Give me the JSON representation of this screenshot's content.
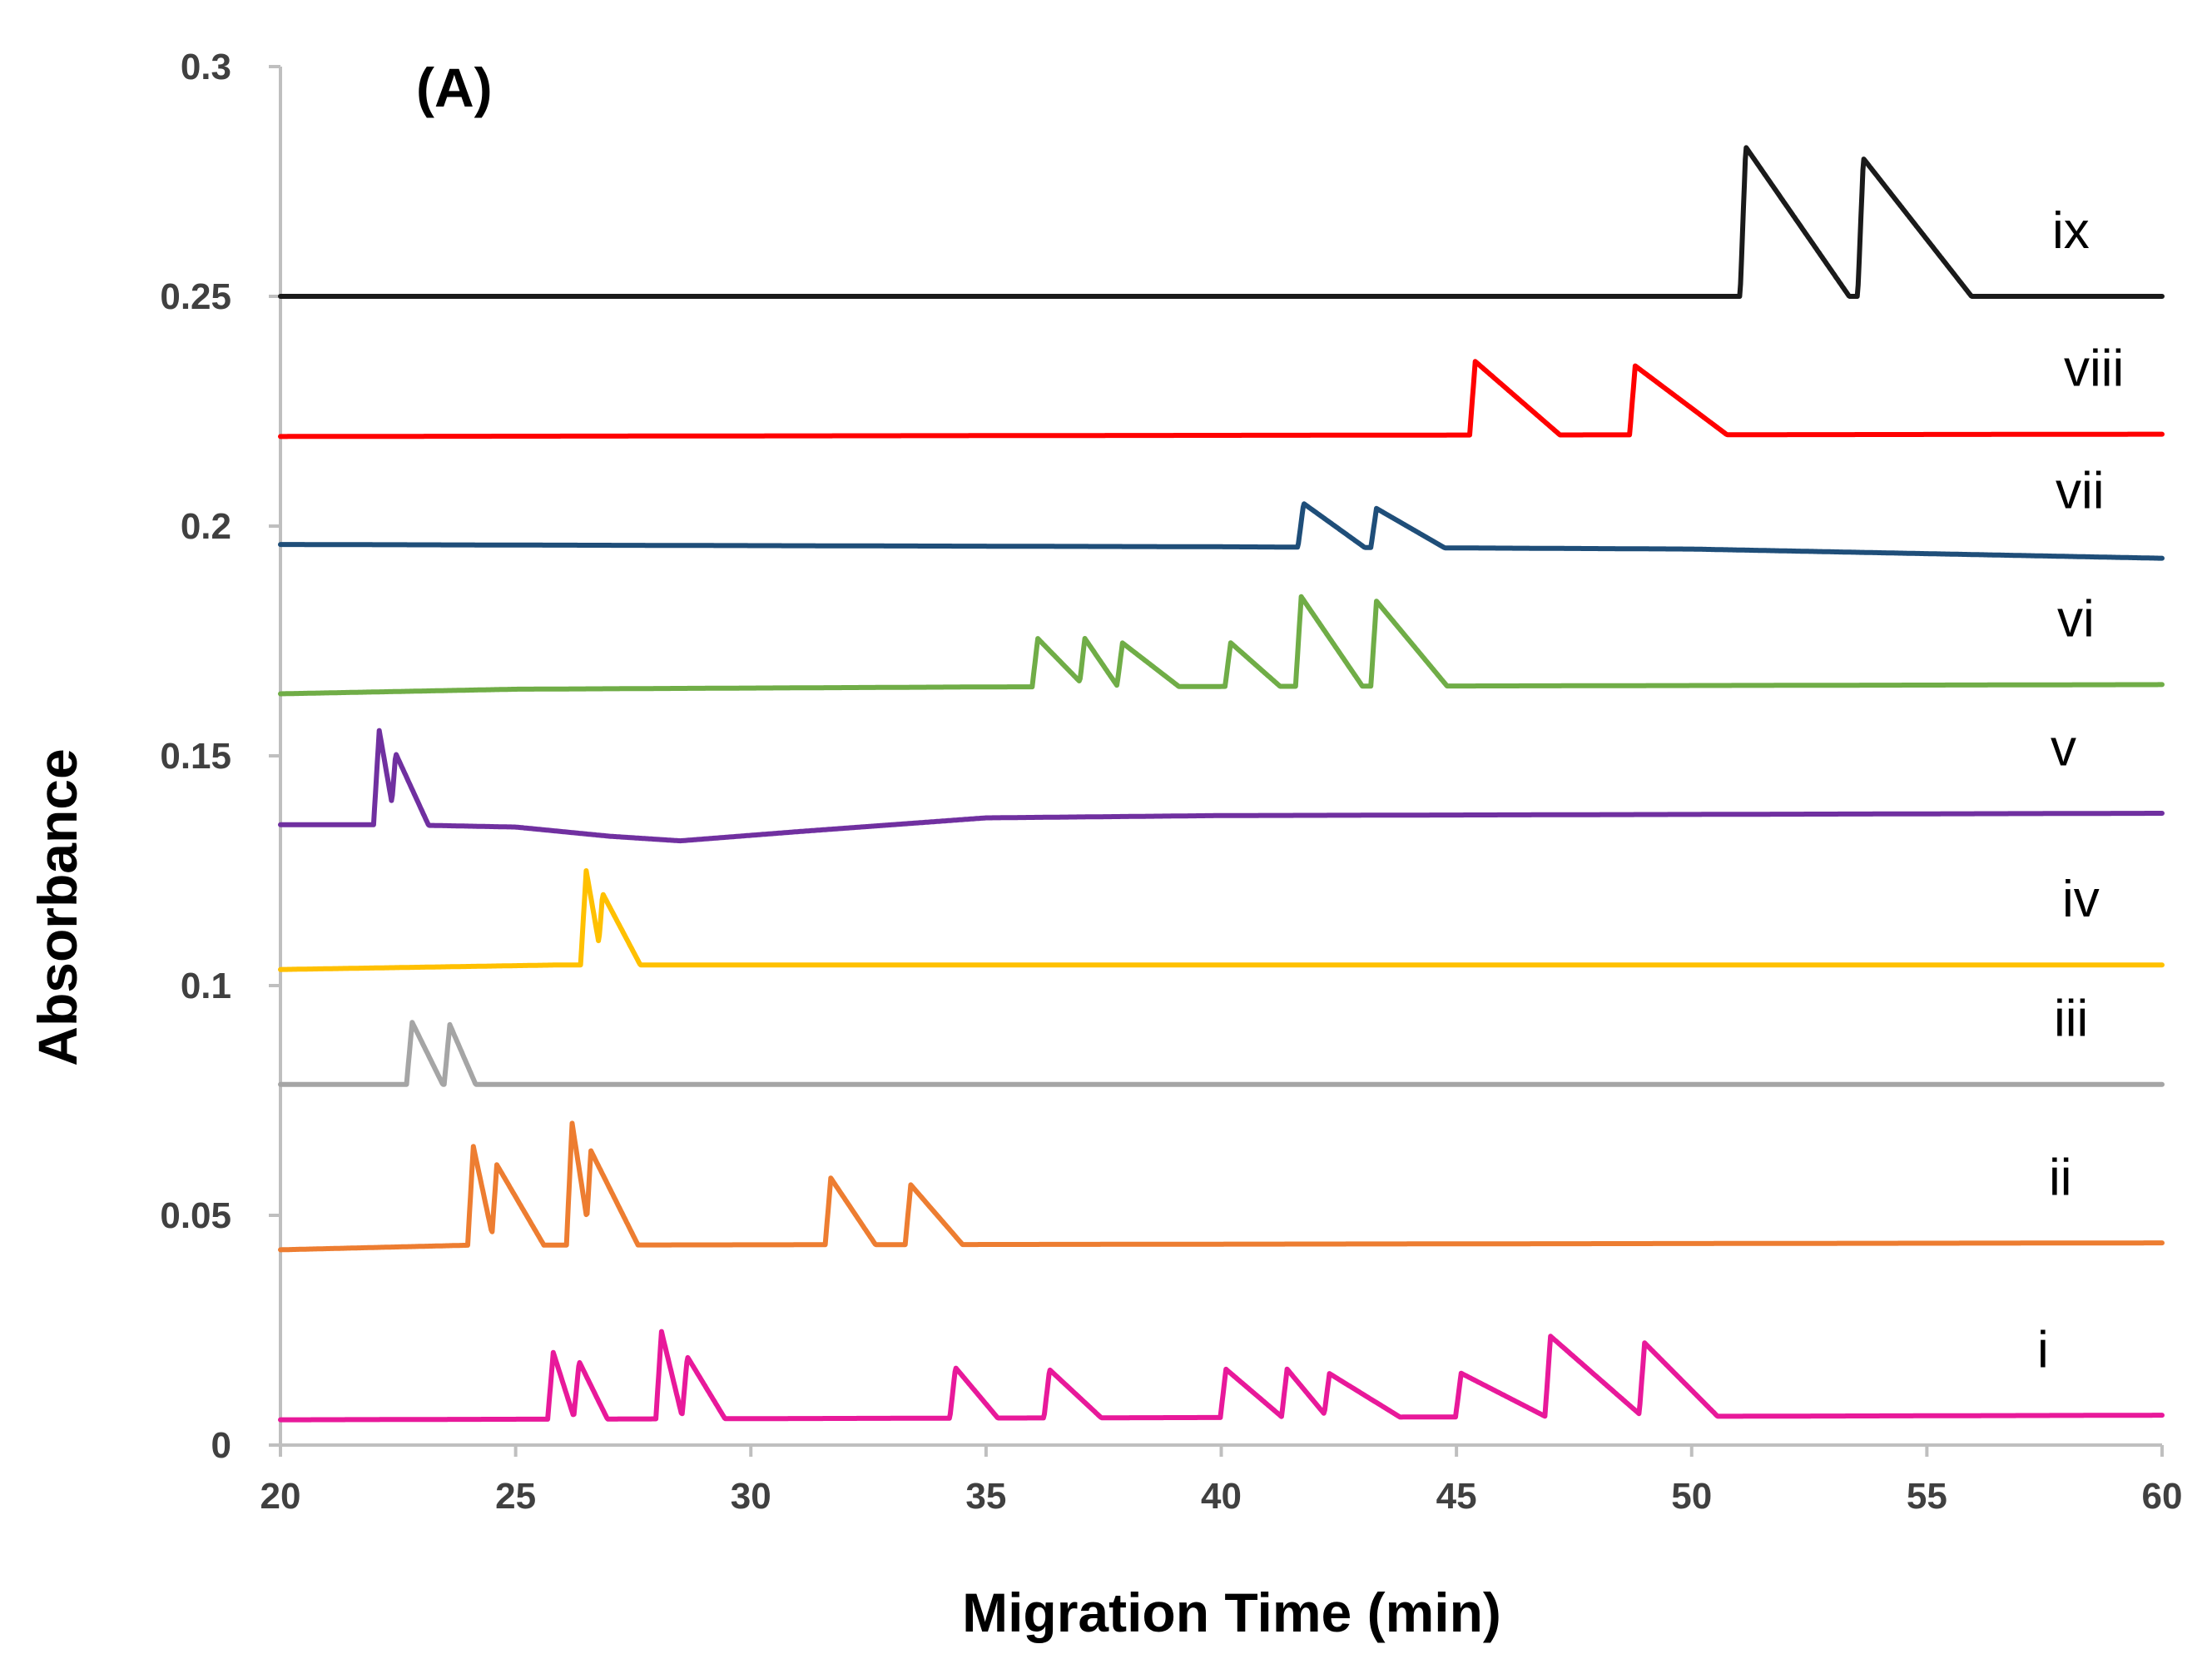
{
  "chart_data": {
    "type": "line",
    "panel_label": "(A)",
    "xlabel": "Migration Time (min)",
    "ylabel": "Absorbance",
    "xlim": [
      20,
      60
    ],
    "ylim": [
      0,
      0.3
    ],
    "xticks": [
      20,
      25,
      30,
      35,
      40,
      45,
      50,
      55,
      60
    ],
    "xtick_labels": [
      "20",
      "25",
      "30",
      "35",
      "40",
      "45",
      "50",
      "55",
      "60"
    ],
    "yticks": [
      0,
      0.05,
      0.1,
      0.15,
      0.2,
      0.25,
      0.3
    ],
    "ytick_labels": [
      "0",
      "0.05",
      "0.1",
      "0.15",
      "0.2",
      "0.25",
      "0.3"
    ],
    "grid": false,
    "series": [
      {
        "name": "i",
        "color": "#e8199a",
        "baseline": [
          [
            20,
            0.0055
          ],
          [
            60,
            0.0065
          ]
        ],
        "peaks": [
          {
            "t": 25.8,
            "h": 0.0145,
            "w": 0.45
          },
          {
            "t": 26.35,
            "h": 0.0125,
            "w": 0.6
          },
          {
            "t": 28.1,
            "h": 0.019,
            "w": 0.45
          },
          {
            "t": 28.65,
            "h": 0.0135,
            "w": 0.8
          },
          {
            "t": 34.35,
            "h": 0.011,
            "w": 0.9
          },
          {
            "t": 36.35,
            "h": 0.0105,
            "w": 1.1
          },
          {
            "t": 40.1,
            "h": 0.0105,
            "w": 1.2
          },
          {
            "t": 41.4,
            "h": 0.0105,
            "w": 0.85
          },
          {
            "t": 42.3,
            "h": 0.0095,
            "w": 1.5
          },
          {
            "t": 45.1,
            "h": 0.0095,
            "w": 1.8
          },
          {
            "t": 47.0,
            "h": 0.0175,
            "w": 1.95
          },
          {
            "t": 49.0,
            "h": 0.016,
            "w": 1.55
          }
        ]
      },
      {
        "name": "ii",
        "color": "#ed7d31",
        "baseline": [
          [
            20,
            0.0425
          ],
          [
            24,
            0.0435
          ],
          [
            60,
            0.044
          ]
        ],
        "peaks": [
          {
            "t": 24.1,
            "h": 0.0215,
            "w": 0.45
          },
          {
            "t": 24.6,
            "h": 0.0175,
            "w": 1.0
          },
          {
            "t": 26.2,
            "h": 0.0265,
            "w": 0.4
          },
          {
            "t": 26.6,
            "h": 0.0205,
            "w": 1.0
          },
          {
            "t": 31.7,
            "h": 0.0145,
            "w": 0.95
          },
          {
            "t": 33.4,
            "h": 0.013,
            "w": 1.1
          }
        ]
      },
      {
        "name": "iii",
        "color": "#a5a5a5",
        "baseline": [
          [
            20,
            0.0785
          ],
          [
            60,
            0.0785
          ]
        ],
        "peaks": [
          {
            "t": 22.8,
            "h": 0.0135,
            "w": 0.65
          },
          {
            "t": 23.6,
            "h": 0.013,
            "w": 0.55
          }
        ]
      },
      {
        "name": "iv",
        "color": "#ffc000",
        "baseline": [
          [
            20,
            0.1035
          ],
          [
            26,
            0.1045
          ],
          [
            60,
            0.1045
          ]
        ],
        "peaks": [
          {
            "t": 26.5,
            "h": 0.0205,
            "w": 0.35
          },
          {
            "t": 26.85,
            "h": 0.0155,
            "w": 0.8
          }
        ]
      },
      {
        "name": "v",
        "color": "#7030a0",
        "baseline": [
          [
            20,
            0.135
          ],
          [
            22.0,
            0.135
          ],
          [
            22.5,
            0.135
          ],
          [
            25,
            0.1345
          ],
          [
            27,
            0.1325
          ],
          [
            28.5,
            0.1315
          ],
          [
            31,
            0.1335
          ],
          [
            35,
            0.1365
          ],
          [
            40,
            0.137
          ],
          [
            60,
            0.1375
          ]
        ],
        "peaks": [
          {
            "t": 22.1,
            "h": 0.0205,
            "w": 0.35
          },
          {
            "t": 22.45,
            "h": 0.0155,
            "w": 0.7
          }
        ]
      },
      {
        "name": "vi",
        "color": "#70ad47",
        "baseline": [
          [
            20,
            0.1635
          ],
          [
            25,
            0.1645
          ],
          [
            35,
            0.165
          ],
          [
            60,
            0.1655
          ]
        ],
        "peaks": [
          {
            "t": 36.1,
            "h": 0.0105,
            "w": 1.0
          },
          {
            "t": 37.1,
            "h": 0.0105,
            "w": 0.7
          },
          {
            "t": 37.9,
            "h": 0.0095,
            "w": 1.2
          },
          {
            "t": 40.2,
            "h": 0.0095,
            "w": 1.05
          },
          {
            "t": 41.7,
            "h": 0.0195,
            "w": 1.3
          },
          {
            "t": 43.3,
            "h": 0.0185,
            "w": 1.5
          }
        ]
      },
      {
        "name": "vii",
        "color": "#1f4e79",
        "baseline": [
          [
            20,
            0.196
          ],
          [
            40,
            0.1955
          ],
          [
            50,
            0.195
          ],
          [
            60,
            0.193
          ]
        ],
        "peaks": [
          {
            "t": 41.75,
            "h": 0.0095,
            "w": 1.3
          },
          {
            "t": 43.3,
            "h": 0.0085,
            "w": 1.45
          }
        ]
      },
      {
        "name": "viii",
        "color": "#ff0000",
        "baseline": [
          [
            20,
            0.2195
          ],
          [
            60,
            0.22
          ]
        ],
        "peaks": [
          {
            "t": 45.4,
            "h": 0.016,
            "w": 1.8
          },
          {
            "t": 48.8,
            "h": 0.015,
            "w": 1.95
          }
        ]
      },
      {
        "name": "ix",
        "color": "#1a1a1a",
        "baseline": [
          [
            20,
            0.25
          ],
          [
            60,
            0.25
          ]
        ],
        "peaks": [
          {
            "t": 51.15,
            "h": 0.0325,
            "w": 2.2
          },
          {
            "t": 53.65,
            "h": 0.03,
            "w": 2.3
          }
        ]
      }
    ]
  }
}
